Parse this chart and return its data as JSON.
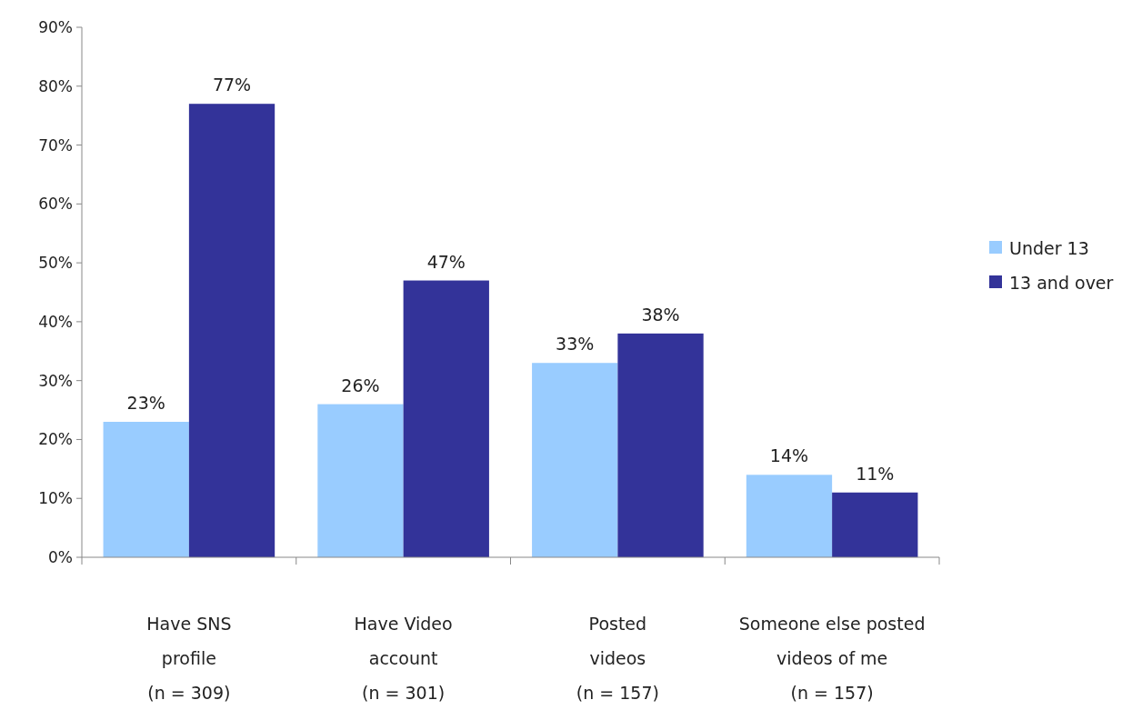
{
  "chart_data": {
    "type": "bar",
    "categories": [
      "Have SNS\nprofile\n(n = 309)",
      "Have Video\naccount\n(n = 301)",
      "Posted\nvideos\n(n = 157)",
      "Someone else posted\nvideos of me\n(n = 157)"
    ],
    "series": [
      {
        "name": "Under 13",
        "color": "#99ccff",
        "values": [
          23,
          26,
          33,
          14
        ],
        "value_labels": [
          "23%",
          "26%",
          "33%",
          "14%"
        ]
      },
      {
        "name": "13 and over",
        "color": "#333399",
        "values": [
          77,
          47,
          38,
          11
        ],
        "value_labels": [
          "77%",
          "47%",
          "38%",
          "11%"
        ]
      }
    ],
    "ylim": [
      0,
      90
    ],
    "yticks": [
      {
        "value": 0,
        "label": "0%"
      },
      {
        "value": 10,
        "label": "10%"
      },
      {
        "value": 20,
        "label": "20%"
      },
      {
        "value": 30,
        "label": "30%"
      },
      {
        "value": 40,
        "label": "40%"
      },
      {
        "value": 50,
        "label": "50%"
      },
      {
        "value": 60,
        "label": "60%"
      },
      {
        "value": 70,
        "label": "70%"
      },
      {
        "value": 80,
        "label": "80%"
      },
      {
        "value": 90,
        "label": "90%"
      }
    ],
    "legend": "right",
    "grid": false
  }
}
